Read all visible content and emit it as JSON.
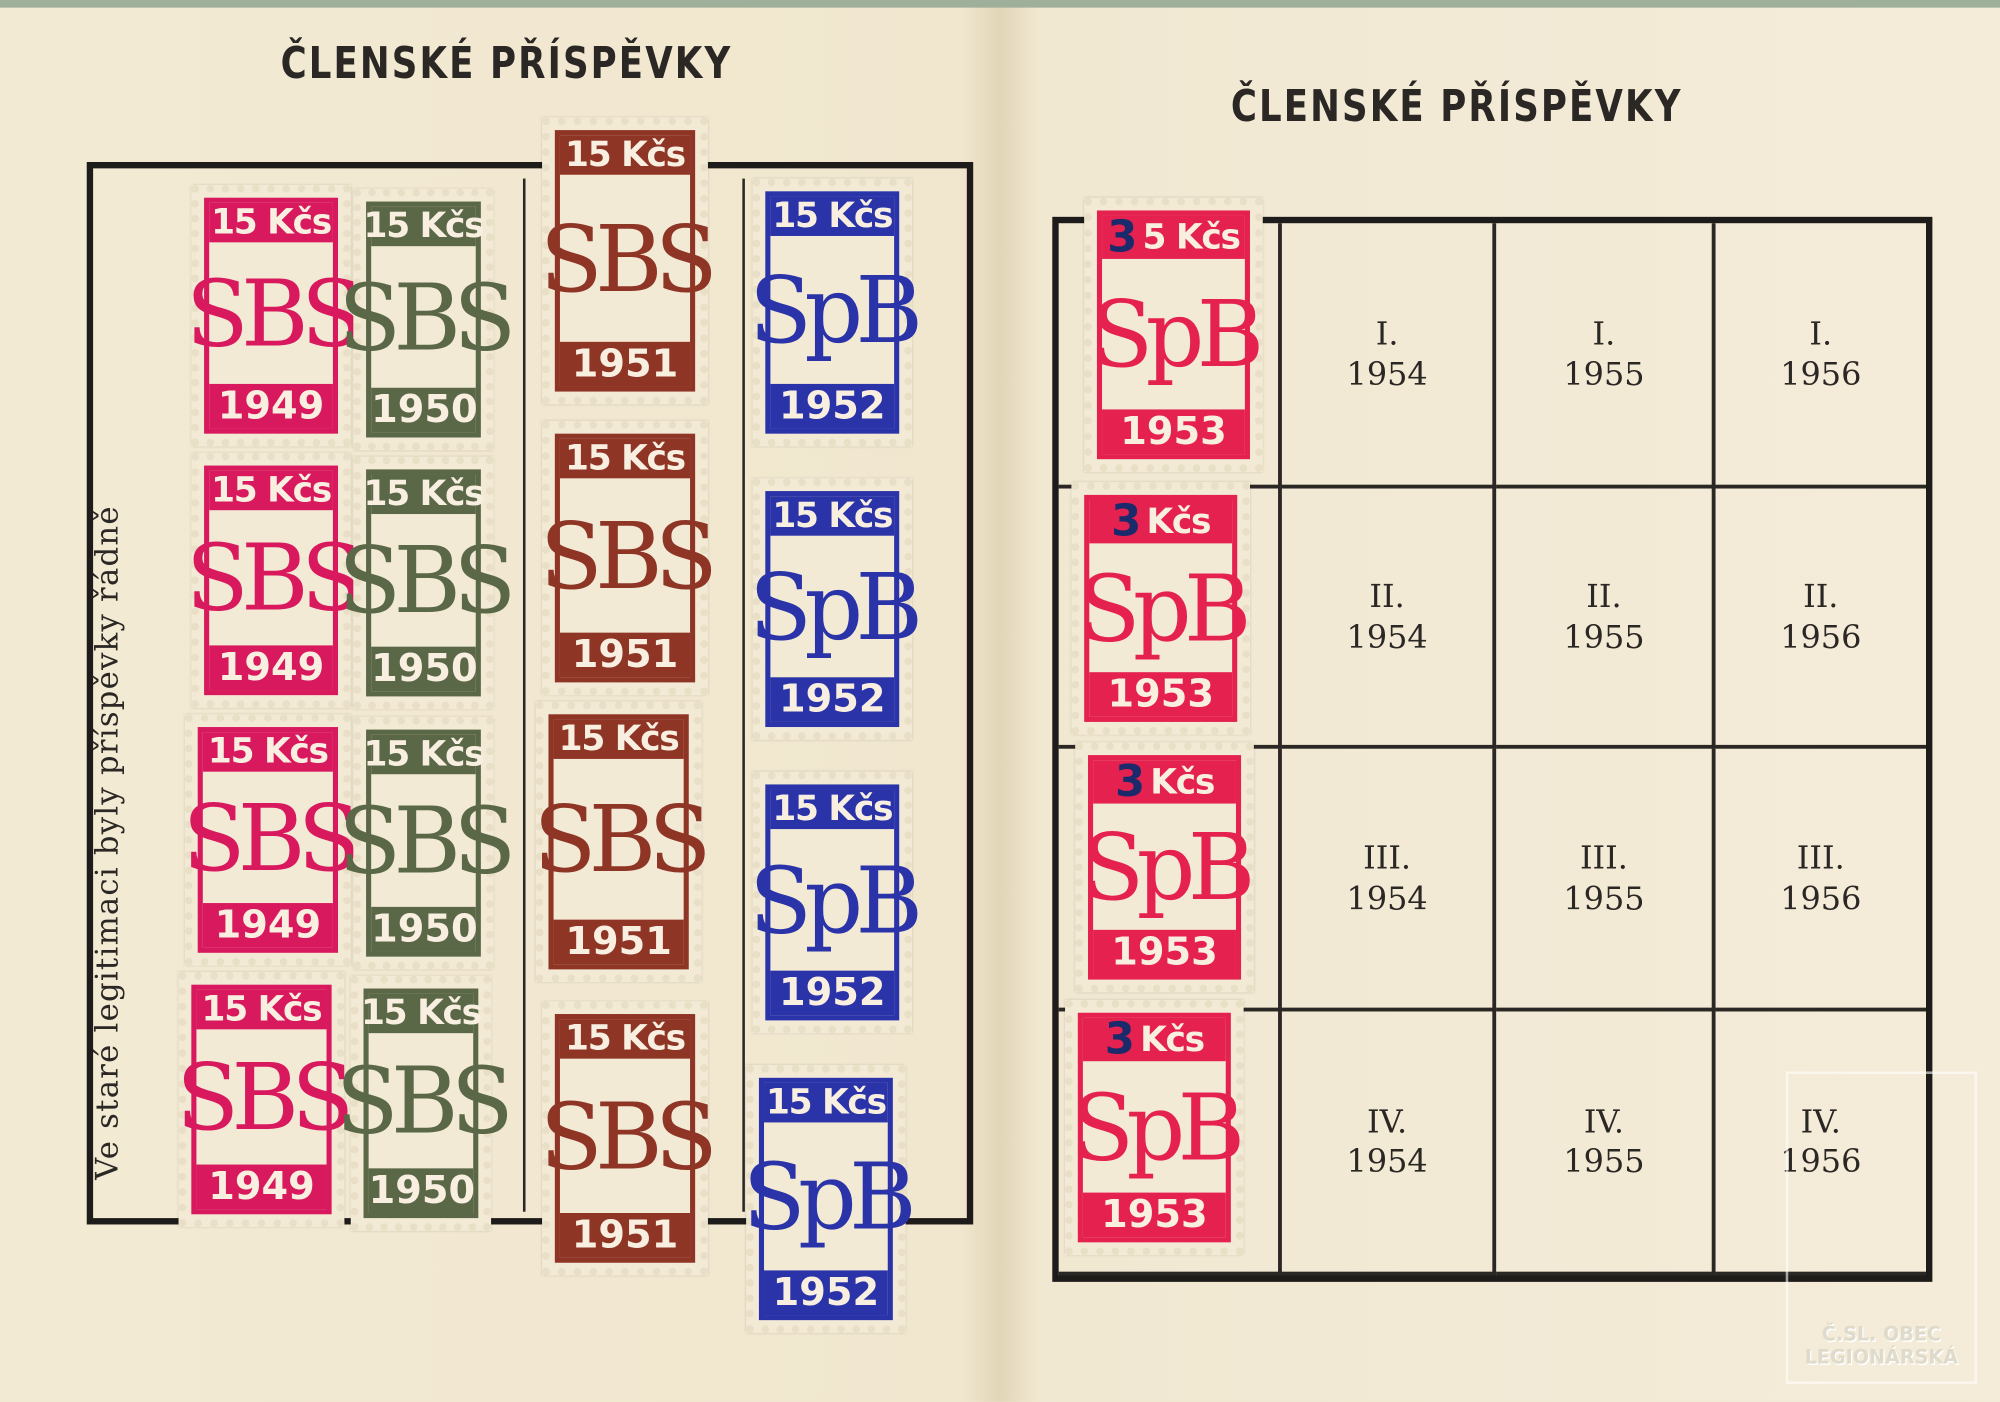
{
  "left_page": {
    "title": "ČLENSKÉ PŘÍSPĚVKY",
    "side_text": "Ve staré legitimaci byly příspěvky řádně",
    "stamps": [
      {
        "value": "15 Kčs",
        "mono": "SBS",
        "year": "1949",
        "color": "#d8195e"
      },
      {
        "value": "15 Kčs",
        "mono": "SBS",
        "year": "1949",
        "color": "#d8195e"
      },
      {
        "value": "15 Kčs",
        "mono": "SBS",
        "year": "1949",
        "color": "#d8195e"
      },
      {
        "value": "15 Kčs",
        "mono": "SBS",
        "year": "1949",
        "color": "#d8195e"
      },
      {
        "value": "15 Kčs",
        "mono": "SBS",
        "year": "1950",
        "color": "#5b6848"
      },
      {
        "value": "15 Kčs",
        "mono": "SBS",
        "year": "1950",
        "color": "#5b6848"
      },
      {
        "value": "15 Kčs",
        "mono": "SBS",
        "year": "1950",
        "color": "#5b6848"
      },
      {
        "value": "15 Kčs",
        "mono": "SBS",
        "year": "1950",
        "color": "#5b6848"
      },
      {
        "value": "15 Kčs",
        "mono": "SBS",
        "year": "1951",
        "color": "#8e3526"
      },
      {
        "value": "15 Kčs",
        "mono": "SBS",
        "year": "1951",
        "color": "#8e3526"
      },
      {
        "value": "15 Kčs",
        "mono": "SBS",
        "year": "1951",
        "color": "#8e3526"
      },
      {
        "value": "15 Kčs",
        "mono": "SBS",
        "year": "1951",
        "color": "#8e3526"
      },
      {
        "value": "15 Kčs",
        "mono": "SpB",
        "year": "1952",
        "color": "#2a33a8"
      },
      {
        "value": "15 Kčs",
        "mono": "SpB",
        "year": "1952",
        "color": "#2a33a8"
      },
      {
        "value": "15 Kčs",
        "mono": "SpB",
        "year": "1952",
        "color": "#2a33a8"
      },
      {
        "value": "15 Kčs",
        "mono": "SpB",
        "year": "1952",
        "color": "#2a33a8"
      }
    ]
  },
  "right_page": {
    "title": "ČLENSKÉ PŘÍSPĚVKY",
    "stamps": [
      {
        "overprint": "3",
        "value": "5 Kčs",
        "mono": "SpB",
        "year": "1953",
        "color": "#e5224f"
      },
      {
        "overprint": "3",
        "value": "Kčs",
        "mono": "SpB",
        "year": "1953",
        "color": "#e5224f"
      },
      {
        "overprint": "3",
        "value": "Kčs",
        "mono": "SpB",
        "year": "1953",
        "color": "#e5224f"
      },
      {
        "overprint": "3",
        "value": "Kčs",
        "mono": "SpB",
        "year": "1953",
        "color": "#e5224f"
      }
    ],
    "grid": [
      [
        {
          "q": "I.",
          "y": "1954"
        },
        {
          "q": "I.",
          "y": "1955"
        },
        {
          "q": "I.",
          "y": "1956"
        }
      ],
      [
        {
          "q": "II.",
          "y": "1954"
        },
        {
          "q": "II.",
          "y": "1955"
        },
        {
          "q": "II.",
          "y": "1956"
        }
      ],
      [
        {
          "q": "III.",
          "y": "1954"
        },
        {
          "q": "III.",
          "y": "1955"
        },
        {
          "q": "III.",
          "y": "1956"
        }
      ],
      [
        {
          "q": "IV.",
          "y": "1954"
        },
        {
          "q": "IV.",
          "y": "1955"
        },
        {
          "q": "IV.",
          "y": "1956"
        }
      ]
    ]
  },
  "watermark": {
    "line1": "Č.SL. OBEC",
    "line2": "LEGIONÁRSKÁ"
  }
}
